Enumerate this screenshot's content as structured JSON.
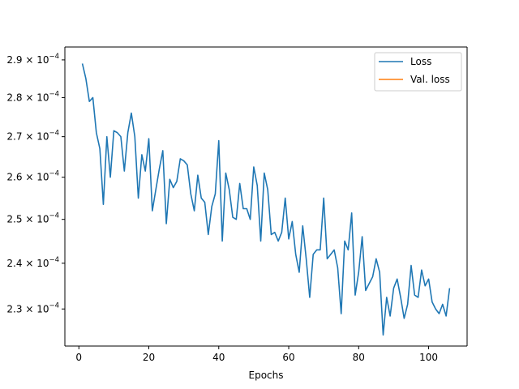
{
  "chart_data": {
    "type": "line",
    "title": "",
    "xlabel": "Epochs",
    "ylabel": "",
    "yscale": "log",
    "xlim": [
      -4,
      111
    ],
    "ylim": [
      0.0002222,
      0.0002935
    ],
    "grid": false,
    "legend_placement": "top-right",
    "x_ticks": [
      0,
      20,
      40,
      60,
      80,
      100
    ],
    "y_ticks": [
      {
        "value": 0.00023,
        "mantissa": "2.3",
        "exp": "−4"
      },
      {
        "value": 0.00024,
        "mantissa": "2.4",
        "exp": "−4"
      },
      {
        "value": 0.00025,
        "mantissa": "2.5",
        "exp": "−4"
      },
      {
        "value": 0.00026,
        "mantissa": "2.6",
        "exp": "−4"
      },
      {
        "value": 0.00027,
        "mantissa": "2.7",
        "exp": "−4"
      },
      {
        "value": 0.00028,
        "mantissa": "2.8",
        "exp": "−4"
      },
      {
        "value": 0.00029,
        "mantissa": "2.9",
        "exp": "−4"
      }
    ],
    "series": [
      {
        "name": "Loss",
        "color": "#1f77b4",
        "x": [
          1,
          2,
          3,
          4,
          5,
          6,
          7,
          8,
          9,
          10,
          11,
          12,
          13,
          14,
          15,
          16,
          17,
          18,
          19,
          20,
          21,
          22,
          23,
          24,
          25,
          26,
          27,
          28,
          29,
          30,
          31,
          32,
          33,
          34,
          35,
          36,
          37,
          38,
          39,
          40,
          41,
          42,
          43,
          44,
          45,
          46,
          47,
          48,
          49,
          50,
          51,
          52,
          53,
          54,
          55,
          56,
          57,
          58,
          59,
          60,
          61,
          62,
          63,
          64,
          65,
          66,
          67,
          68,
          69,
          70,
          71,
          72,
          73,
          74,
          75,
          76,
          77,
          78,
          79,
          80,
          81,
          82,
          83,
          84,
          85,
          86,
          87,
          88,
          89,
          90,
          91,
          92,
          93,
          94,
          95,
          96,
          97,
          98,
          99,
          100,
          101,
          102,
          103,
          104,
          105,
          106
        ],
        "y": [
          0.000289,
          0.000285,
          0.000279,
          0.00028,
          0.000271,
          0.000267,
          0.0002535,
          0.00027,
          0.00026,
          0.0002715,
          0.000271,
          0.00027,
          0.0002615,
          0.000271,
          0.000276,
          0.00027,
          0.000255,
          0.0002655,
          0.0002615,
          0.0002695,
          0.000252,
          0.000257,
          0.000262,
          0.0002665,
          0.000249,
          0.0002595,
          0.0002575,
          0.000259,
          0.0002645,
          0.000264,
          0.000263,
          0.000256,
          0.000252,
          0.0002605,
          0.000255,
          0.000254,
          0.0002465,
          0.000253,
          0.000256,
          0.000269,
          0.000245,
          0.000261,
          0.000257,
          0.0002505,
          0.00025,
          0.0002585,
          0.0002525,
          0.0002525,
          0.00025,
          0.0002625,
          0.000258,
          0.000245,
          0.000261,
          0.000257,
          0.0002465,
          0.000247,
          0.000245,
          0.000247,
          0.000255,
          0.0002455,
          0.0002495,
          0.000242,
          0.000238,
          0.0002485,
          0.000241,
          0.0002325,
          0.000242,
          0.000243,
          0.000243,
          0.000255,
          0.000241,
          0.000242,
          0.000243,
          0.000239,
          0.000229,
          0.000245,
          0.000243,
          0.0002515,
          0.000233,
          0.000238,
          0.000246,
          0.000234,
          0.0002355,
          0.000237,
          0.000241,
          0.000238,
          0.0002245,
          0.0002325,
          0.0002285,
          0.0002345,
          0.0002365,
          0.0002325,
          0.000228,
          0.000231,
          0.0002395,
          0.000233,
          0.0002325,
          0.0002385,
          0.000235,
          0.0002365,
          0.0002315,
          0.00023,
          0.000229,
          0.000231,
          0.0002285,
          0.0002345
        ]
      },
      {
        "name": "Val. loss",
        "color": "#ff7f0e",
        "x": [],
        "y": []
      }
    ]
  }
}
